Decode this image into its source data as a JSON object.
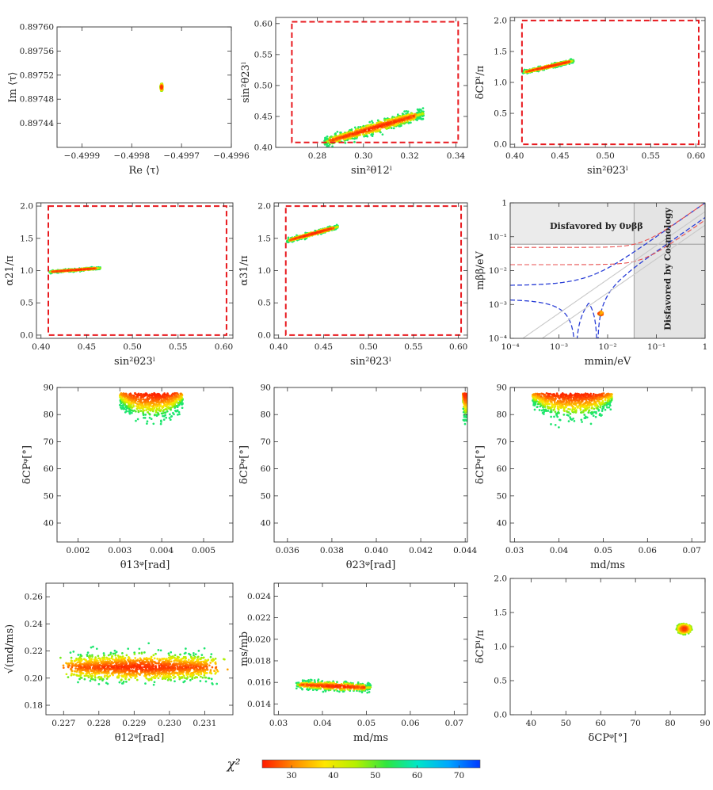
{
  "chart_data": [
    {
      "id": "p1",
      "type": "scatter",
      "xlabel": "Re ⟨τ⟩",
      "ylabel": "Im ⟨τ⟩",
      "xlim": [
        -0.49995,
        -0.4996
      ],
      "ylim": [
        0.8974,
        0.8976
      ],
      "xticks": [
        -0.4999,
        -0.4998,
        -0.4997,
        -0.4996
      ],
      "xtick_labels": [
        "−0.4999",
        "−0.4998",
        "−0.4997",
        "−0.4996"
      ],
      "yticks": [
        0.89744,
        0.89748,
        0.89752,
        0.89756,
        0.8976
      ],
      "ytick_labels": [
        "0.89744",
        "0.89748",
        "0.89752",
        "0.89756",
        "0.89760"
      ],
      "clusters": [
        {
          "cx": -0.49974,
          "cy": 0.8975,
          "sx": 2.5e-06,
          "sy": 6.5e-06,
          "n": 420,
          "shape": "ellipse"
        }
      ]
    },
    {
      "id": "p2",
      "type": "scatter",
      "xlabel": "sin²θ12ˡ",
      "ylabel": "sin²θ23ˡ",
      "xlim": [
        0.262,
        0.345
      ],
      "ylim": [
        0.4,
        0.61
      ],
      "xticks": [
        0.28,
        0.3,
        0.32,
        0.34
      ],
      "xtick_labels": [
        "0.28",
        "0.30",
        "0.32",
        "0.34"
      ],
      "yticks": [
        0.4,
        0.45,
        0.5,
        0.55,
        0.6
      ],
      "ytick_labels": [
        "0.40",
        "0.45",
        "0.50",
        "0.55",
        "0.60"
      ],
      "box": [
        0.269,
        0.341,
        0.408,
        0.603
      ],
      "clusters": [
        {
          "x0": 0.283,
          "y0": 0.408,
          "x1": 0.326,
          "y1": 0.455,
          "w": 0.012,
          "n": 900,
          "shape": "band"
        }
      ]
    },
    {
      "id": "p3",
      "type": "scatter",
      "xlabel": "sin²θ23ˡ",
      "ylabel": "δCPˡ/π",
      "xlim": [
        0.395,
        0.61
      ],
      "ylim": [
        -0.05,
        2.05
      ],
      "xticks": [
        0.4,
        0.45,
        0.5,
        0.55,
        0.6
      ],
      "xtick_labels": [
        "0.40",
        "0.45",
        "0.50",
        "0.55",
        "0.60"
      ],
      "yticks": [
        0,
        0.5,
        1,
        1.5,
        2
      ],
      "ytick_labels": [
        "0.0",
        "0.5",
        "1.0",
        "1.5",
        "2.0"
      ],
      "box": [
        0.408,
        0.603,
        0.0,
        2.0
      ],
      "clusters": [
        {
          "x0": 0.409,
          "y0": 1.16,
          "x1": 0.465,
          "y1": 1.35,
          "w": 0.04,
          "n": 500,
          "shape": "band"
        }
      ]
    },
    {
      "id": "p4",
      "type": "scatter",
      "xlabel": "sin²θ23ˡ",
      "ylabel": "α21/π",
      "xlim": [
        0.395,
        0.61
      ],
      "ylim": [
        -0.05,
        2.05
      ],
      "xticks": [
        0.4,
        0.45,
        0.5,
        0.55,
        0.6
      ],
      "xtick_labels": [
        "0.40",
        "0.45",
        "0.50",
        "0.55",
        "0.60"
      ],
      "yticks": [
        0,
        0.5,
        1,
        1.5,
        2
      ],
      "ytick_labels": [
        "0.0",
        "0.5",
        "1.0",
        "1.5",
        "2.0"
      ],
      "box": [
        0.408,
        0.603,
        0.0,
        2.0
      ],
      "clusters": [
        {
          "x0": 0.409,
          "y0": 0.98,
          "x1": 0.465,
          "y1": 1.04,
          "w": 0.025,
          "n": 420,
          "shape": "band"
        }
      ]
    },
    {
      "id": "p5",
      "type": "scatter",
      "xlabel": "sin²θ23ˡ",
      "ylabel": "α31/π",
      "xlim": [
        0.395,
        0.61
      ],
      "ylim": [
        -0.05,
        2.05
      ],
      "xticks": [
        0.4,
        0.45,
        0.5,
        0.55,
        0.6
      ],
      "xtick_labels": [
        "0.40",
        "0.45",
        "0.50",
        "0.55",
        "0.60"
      ],
      "yticks": [
        0,
        0.5,
        1,
        1.5,
        2
      ],
      "ytick_labels": [
        "0.0",
        "0.5",
        "1.0",
        "1.5",
        "2.0"
      ],
      "box": [
        0.408,
        0.603,
        0.0,
        2.0
      ],
      "clusters": [
        {
          "x0": 0.409,
          "y0": 1.46,
          "x1": 0.466,
          "y1": 1.68,
          "w": 0.045,
          "n": 500,
          "shape": "band"
        }
      ]
    },
    {
      "id": "p6",
      "type": "line",
      "xlabel": "mmin/eV",
      "ylabel": "mββ/eV",
      "log": true,
      "xlim": [
        0.0001,
        1
      ],
      "ylim": [
        0.0001,
        1
      ],
      "ticks": [
        0.0001,
        0.001,
        0.01,
        0.1,
        1
      ],
      "tick_labels": [
        "10⁻⁴",
        "10⁻³",
        "10⁻²",
        "10⁻¹",
        "1"
      ],
      "annotations": {
        "dbb": "Disfavored by 0νββ",
        "cosmo": "Disfavored by Cosmology"
      },
      "bounds": {
        "mbb_limit": 0.06,
        "mmin_limit": 0.035
      },
      "point": {
        "x": 0.0072,
        "y": 0.00055
      }
    },
    {
      "id": "p7",
      "type": "scatter",
      "xlabel": "θ13ᵠ[rad]",
      "ylabel": "δCPᵠ[°]",
      "xlim": [
        0.0015,
        0.0057
      ],
      "ylim": [
        33,
        90
      ],
      "xticks": [
        0.002,
        0.003,
        0.004,
        0.005
      ],
      "xtick_labels": [
        "0.002",
        "0.003",
        "0.004",
        "0.005"
      ],
      "yticks": [
        40,
        50,
        60,
        70,
        80,
        90
      ],
      "ytick_labels": [
        "40",
        "50",
        "60",
        "70",
        "80",
        "90"
      ],
      "clusters": [
        {
          "x0": 0.003,
          "x1": 0.0045,
          "ytop": 88,
          "ybot": 79,
          "n": 800,
          "shape": "cap"
        }
      ]
    },
    {
      "id": "p8",
      "type": "scatter",
      "xlabel": "θ23ᵠ[rad]",
      "ylabel": "δCPᵠ[°]",
      "xlim": [
        0.0354,
        0.0441
      ],
      "ylim": [
        33,
        90
      ],
      "xticks": [
        0.036,
        0.038,
        0.04,
        0.042,
        0.044
      ],
      "xtick_labels": [
        "0.036",
        "0.038",
        "0.040",
        "0.042",
        "0.044"
      ],
      "yticks": [
        40,
        50,
        60,
        70,
        80,
        90
      ],
      "ytick_labels": [
        "40",
        "50",
        "60",
        "70",
        "80",
        "90"
      ],
      "clusters": [
        {
          "x0": 0.0439,
          "x1": 0.04415,
          "ytop": 88,
          "ybot": 79,
          "n": 260,
          "shape": "cap"
        }
      ]
    },
    {
      "id": "p9",
      "type": "scatter",
      "xlabel": "md/ms",
      "ylabel": "δCPᵠ[°]",
      "xlim": [
        0.029,
        0.073
      ],
      "ylim": [
        33,
        90
      ],
      "xticks": [
        0.03,
        0.04,
        0.05,
        0.06,
        0.07
      ],
      "xtick_labels": [
        "0.03",
        "0.04",
        "0.05",
        "0.06",
        "0.07"
      ],
      "yticks": [
        40,
        50,
        60,
        70,
        80,
        90
      ],
      "ytick_labels": [
        "40",
        "50",
        "60",
        "70",
        "80",
        "90"
      ],
      "clusters": [
        {
          "x0": 0.034,
          "x1": 0.052,
          "ytop": 88,
          "ybot": 79,
          "n": 800,
          "shape": "cap"
        }
      ]
    },
    {
      "id": "p10",
      "type": "scatter",
      "xlabel": "θ12ᵠ[rad]",
      "ylabel": "√(md/ms)",
      "xlim": [
        0.2265,
        0.2318
      ],
      "ylim": [
        0.173,
        0.27
      ],
      "xticks": [
        0.227,
        0.228,
        0.229,
        0.23,
        0.231
      ],
      "xtick_labels": [
        "0.227",
        "0.228",
        "0.229",
        "0.230",
        "0.231"
      ],
      "yticks": [
        0.18,
        0.2,
        0.22,
        0.24,
        0.26
      ],
      "ytick_labels": [
        "0.18",
        "0.20",
        "0.22",
        "0.24",
        "0.26"
      ],
      "clusters": [
        {
          "cx": 0.2292,
          "cy": 0.208,
          "sx": 0.0017,
          "sy": 0.0085,
          "n": 1600,
          "shape": "blob"
        }
      ]
    },
    {
      "id": "p11",
      "type": "scatter",
      "xlabel": "md/ms",
      "ylabel": "ms/mb",
      "xlim": [
        0.029,
        0.073
      ],
      "ylim": [
        0.013,
        0.0252
      ],
      "xticks": [
        0.03,
        0.04,
        0.05,
        0.06,
        0.07
      ],
      "xtick_labels": [
        "0.03",
        "0.04",
        "0.05",
        "0.06",
        "0.07"
      ],
      "yticks": [
        0.014,
        0.016,
        0.018,
        0.02,
        0.022,
        0.024
      ],
      "ytick_labels": [
        "0.014",
        "0.016",
        "0.018",
        "0.020",
        "0.022",
        "0.024"
      ],
      "clusters": [
        {
          "x0": 0.034,
          "x1": 0.051,
          "y0": 0.0158,
          "y1": 0.0155,
          "w": 0.00055,
          "n": 550,
          "shape": "band"
        }
      ]
    },
    {
      "id": "p12",
      "type": "scatter",
      "xlabel": "δCPᵠ[°]",
      "ylabel": "δCPˡ/π",
      "xlim": [
        34,
        90
      ],
      "ylim": [
        0,
        2
      ],
      "xticks": [
        40,
        50,
        60,
        70,
        80,
        90
      ],
      "xtick_labels": [
        "40",
        "50",
        "60",
        "70",
        "80",
        "90"
      ],
      "yticks": [
        0,
        0.5,
        1,
        1.5,
        2
      ],
      "ytick_labels": [
        "0.0",
        "0.5",
        "1.0",
        "1.5",
        "2.0"
      ],
      "clusters": [
        {
          "cx": 84,
          "cy": 1.26,
          "sx": 2.2,
          "sy": 0.08,
          "n": 380,
          "shape": "ellipse"
        }
      ]
    }
  ],
  "colorbar": {
    "label": "χ²",
    "range": [
      23,
      75
    ],
    "ticks": [
      30,
      40,
      50,
      60,
      70
    ],
    "tick_labels": [
      "30",
      "40",
      "50",
      "60",
      "70"
    ],
    "colors": [
      "#ff1a00",
      "#ff8a00",
      "#ffe600",
      "#b4f000",
      "#2ee640",
      "#00e6c8",
      "#00a6ff",
      "#0038ff"
    ]
  }
}
